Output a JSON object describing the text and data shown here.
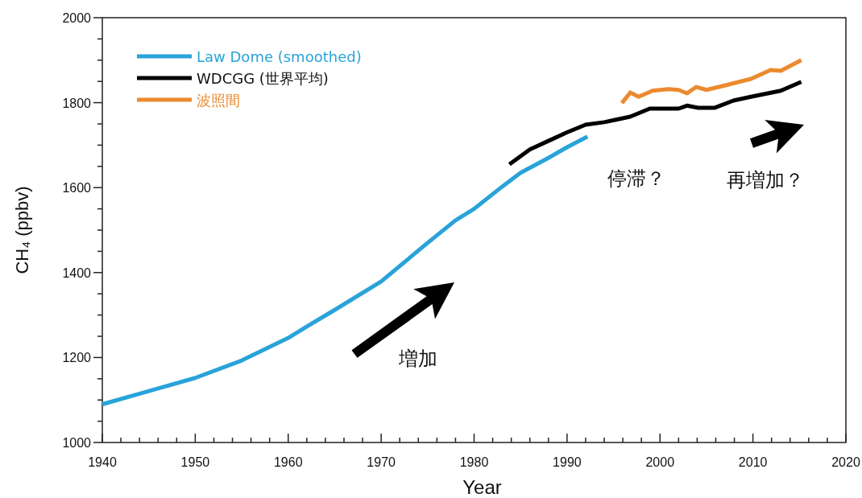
{
  "chart_data": {
    "type": "line",
    "xlabel": "Year",
    "ylabel": "CH₄ (ppbv)",
    "xlim": [
      1940,
      2020
    ],
    "ylim": [
      1000,
      2000
    ],
    "xticks": [
      1940,
      {
        "value": 1942,
        "label": null
      },
      {
        "value": 1944,
        "label": null
      },
      {
        "value": 1946,
        "label": null
      },
      {
        "value": 1948,
        "label": null
      },
      1950,
      {
        "value": 1952,
        "label": null
      },
      {
        "value": 1954,
        "label": null
      },
      {
        "value": 1956,
        "label": null
      },
      {
        "value": 1958,
        "label": null
      },
      1960,
      {
        "value": 1962,
        "label": null
      },
      {
        "value": 1964,
        "label": null
      },
      {
        "value": 1966,
        "label": null
      },
      {
        "value": 1968,
        "label": null
      },
      1970,
      {
        "value": 1972,
        "label": null
      },
      {
        "value": 1974,
        "label": null
      },
      {
        "value": 1976,
        "label": null
      },
      {
        "value": 1978,
        "label": null
      },
      1980,
      {
        "value": 1982,
        "label": null
      },
      {
        "value": 1984,
        "label": null
      },
      {
        "value": 1986,
        "label": null
      },
      {
        "value": 1988,
        "label": null
      },
      1990,
      {
        "value": 1992,
        "label": null
      },
      {
        "value": 1994,
        "label": null
      },
      {
        "value": 1996,
        "label": null
      },
      {
        "value": 1998,
        "label": null
      },
      2000,
      {
        "value": 2002,
        "label": null
      },
      {
        "value": 2004,
        "label": null
      },
      {
        "value": 2006,
        "label": null
      },
      {
        "value": 2008,
        "label": null
      },
      2010,
      {
        "value": 2012,
        "label": null
      },
      {
        "value": 2014,
        "label": null
      },
      {
        "value": 2016,
        "label": null
      },
      {
        "value": 2018,
        "label": null
      },
      2020
    ],
    "yticks": [
      1000,
      {
        "value": 1050,
        "label": null
      },
      {
        "value": 1100,
        "label": null
      },
      {
        "value": 1150,
        "label": null
      },
      1200,
      {
        "value": 1250,
        "label": null
      },
      {
        "value": 1300,
        "label": null
      },
      {
        "value": 1350,
        "label": null
      },
      1400,
      {
        "value": 1450,
        "label": null
      },
      {
        "value": 1500,
        "label": null
      },
      {
        "value": 1550,
        "label": null
      },
      1600,
      {
        "value": 1650,
        "label": null
      },
      {
        "value": 1700,
        "label": null
      },
      {
        "value": 1750,
        "label": null
      },
      1800,
      {
        "value": 1850,
        "label": null
      },
      {
        "value": 1900,
        "label": null
      },
      {
        "value": 1950,
        "label": null
      },
      2000
    ],
    "legend": "top left",
    "series": [
      {
        "name": "Law Dome (smoothed)",
        "color": "#29a3d9",
        "x": [
          1940,
          1945,
          1950,
          1955,
          1960,
          1962,
          1965,
          1970,
          1975,
          1978,
          1980,
          1983,
          1985,
          1988,
          1990,
          1992.2
        ],
        "values": [
          1090,
          1121,
          1152,
          1193,
          1246,
          1273,
          1312,
          1379,
          1470,
          1523,
          1550,
          1602,
          1635,
          1670,
          1695,
          1720
        ]
      },
      {
        "name": "WDCGG (世界平均)",
        "color": "#000000",
        "x": [
          1983.8,
          1986,
          1988,
          1990,
          1992,
          1994,
          1996.8,
          1998.9,
          2002,
          2002.9,
          2004.1,
          2005.9,
          2007.9,
          2009.8,
          2013,
          2015.2
        ],
        "values": [
          1655,
          1690,
          1710,
          1730,
          1748,
          1754,
          1767,
          1786,
          1786,
          1793,
          1788,
          1788,
          1805,
          1814,
          1828,
          1849
        ]
      },
      {
        "name": "波照間",
        "color": "#ec8a2f",
        "x": [
          1995.9,
          1996.8,
          1997.7,
          1999.2,
          2000.9,
          2002,
          2002.9,
          2003.9,
          2005,
          2006.7,
          2009.8,
          2011.9,
          2013,
          2015.2
        ],
        "values": [
          1799,
          1824,
          1814,
          1828,
          1832,
          1830,
          1822,
          1837,
          1830,
          1839,
          1856,
          1877,
          1875,
          1900
        ]
      }
    ],
    "annotations": [
      "増加",
      "停滞？",
      "再増加？"
    ]
  }
}
